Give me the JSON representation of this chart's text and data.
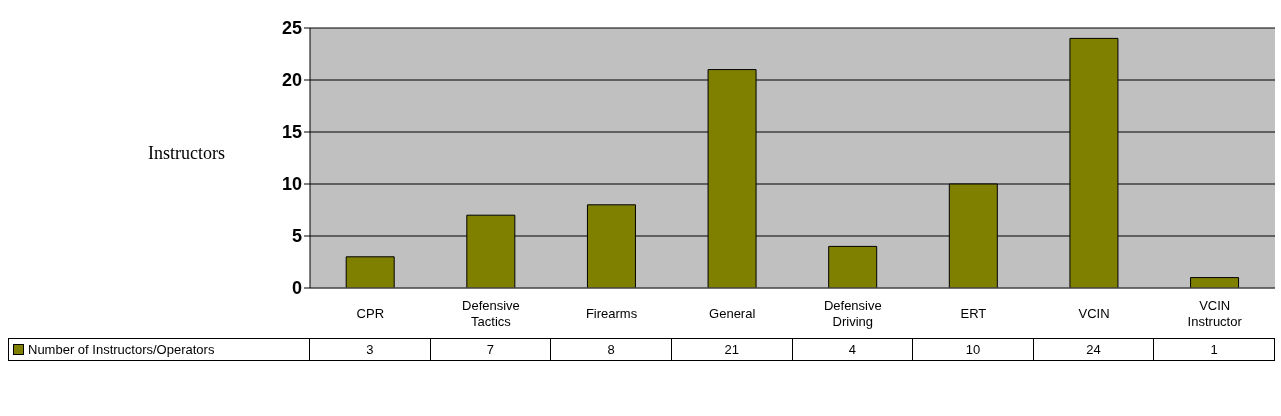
{
  "chart_data": {
    "type": "bar",
    "ylabel": "Instructors",
    "categories": [
      "CPR",
      "Defensive Tactics",
      "Firearms",
      "General",
      "Defensive Driving",
      "ERT",
      "VCIN",
      "VCIN Instructor"
    ],
    "series": [
      {
        "name": "Number of Instructors/Operators",
        "color": "#808000",
        "values": [
          3,
          7,
          8,
          21,
          4,
          10,
          24,
          1
        ]
      }
    ],
    "ylim": [
      0,
      25
    ],
    "yticks": [
      0,
      5,
      10,
      15,
      20,
      25
    ],
    "grid": "y",
    "data_labels": true,
    "legend": "bottom"
  }
}
